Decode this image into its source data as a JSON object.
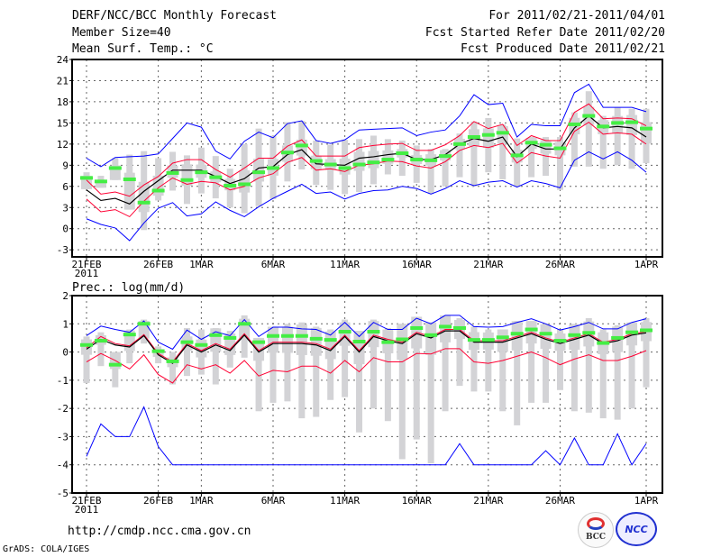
{
  "header": {
    "title": "DERF/NCC/BCC Monthly Forecast",
    "member_size": "Member Size=40",
    "variable": "Mean Surf. Temp.: °C",
    "period": "For 2011/02/21-2011/04/01",
    "started": "Fcst Started Refer Date 2011/02/20",
    "produced": "Fcst Produced Date 2011/02/21"
  },
  "footer": {
    "url": "http://cmdp.ncc.cma.gov.cn",
    "credit": "GrADS: COLA/IGES",
    "logo_bcc": "BCC",
    "logo_ncc": "NCC"
  },
  "colors": {
    "mean": "#000000",
    "spread": "#ff0033",
    "extreme": "#0000ff",
    "observed": "#44ee44",
    "range": "#d3d3d6"
  },
  "chart_data": [
    {
      "type": "line",
      "title": "Mean Surf. Temp.: °C",
      "ylim": [
        -4,
        24
      ],
      "yticks": [
        -3,
        0,
        3,
        6,
        9,
        12,
        15,
        18,
        21,
        24
      ],
      "xticks": [
        {
          "day": 0,
          "label": "21FEB",
          "sub": "2011"
        },
        {
          "day": 5,
          "label": "26FEB"
        },
        {
          "day": 8,
          "label": "1MAR"
        },
        {
          "day": 13,
          "label": "6MAR"
        },
        {
          "day": 18,
          "label": "11MAR"
        },
        {
          "day": 23,
          "label": "16MAR"
        },
        {
          "day": 28,
          "label": "21MAR"
        },
        {
          "day": 33,
          "label": "26MAR"
        },
        {
          "day": 39,
          "label": "1APR"
        }
      ],
      "grid": true,
      "series": {
        "mean": [
          5.5,
          4.0,
          4.3,
          3.5,
          5.3,
          6.8,
          8.3,
          8.3,
          8.3,
          7.4,
          6.4,
          7.1,
          8.6,
          8.8,
          10.5,
          11.2,
          9.2,
          9.1,
          9.0,
          10.0,
          10.2,
          10.5,
          10.7,
          9.8,
          9.8,
          10.5,
          12.0,
          12.8,
          12.4,
          13.0,
          10.2,
          12.0,
          11.3,
          11.3,
          14.3,
          16.0,
          14.3,
          14.5,
          14.3,
          13.0
        ],
        "upper": [
          6.9,
          4.9,
          5.2,
          4.6,
          6.2,
          7.4,
          9.3,
          9.8,
          9.8,
          8.4,
          7.3,
          8.6,
          10.0,
          10.0,
          11.7,
          12.6,
          10.3,
          10.3,
          10.3,
          11.5,
          11.8,
          12.0,
          12.1,
          11.1,
          11.1,
          11.9,
          13.2,
          15.2,
          14.2,
          14.8,
          11.8,
          13.2,
          12.5,
          12.5,
          16.5,
          17.7,
          15.6,
          15.7,
          15.6,
          14.6
        ],
        "lower": [
          4.2,
          2.4,
          2.7,
          1.7,
          3.9,
          5.8,
          7.2,
          6.3,
          6.7,
          6.5,
          5.5,
          6.0,
          7.2,
          7.8,
          9.4,
          10.1,
          8.3,
          8.5,
          8.1,
          9.0,
          9.2,
          9.6,
          9.5,
          8.9,
          8.6,
          9.5,
          11.1,
          11.8,
          11.5,
          12.1,
          9.3,
          10.8,
          10.3,
          10.0,
          13.8,
          15.1,
          13.4,
          13.6,
          13.4,
          12.0
        ],
        "max": [
          10.0,
          8.8,
          10.1,
          10.2,
          10.3,
          10.6,
          12.8,
          15.0,
          14.4,
          11.0,
          9.9,
          12.4,
          13.7,
          12.9,
          14.9,
          15.3,
          12.5,
          12.1,
          12.6,
          14.0,
          14.1,
          14.2,
          14.3,
          13.2,
          13.7,
          14.0,
          16.0,
          19.0,
          17.6,
          17.8,
          13.0,
          14.8,
          14.6,
          14.6,
          19.3,
          20.5,
          17.2,
          17.2,
          17.2,
          16.6
        ],
        "min": [
          1.4,
          0.6,
          0.1,
          -1.7,
          0.8,
          2.9,
          3.7,
          1.8,
          2.1,
          3.8,
          2.6,
          1.7,
          3.1,
          4.3,
          5.3,
          6.3,
          5.0,
          5.2,
          4.2,
          5.0,
          5.4,
          5.5,
          6.0,
          5.7,
          4.9,
          5.7,
          6.8,
          6.1,
          6.6,
          6.8,
          5.9,
          6.8,
          6.4,
          5.8,
          9.7,
          10.9,
          9.9,
          10.9,
          9.7,
          8.0
        ],
        "observed": [
          7.2,
          6.7,
          8.6,
          7.0,
          3.7,
          5.4,
          7.9,
          6.9,
          8.0,
          7.3,
          6.1,
          6.3,
          8.0,
          8.6,
          10.8,
          11.8,
          9.6,
          9.1,
          8.6,
          9.1,
          9.4,
          9.8,
          10.7,
          9.8,
          9.7,
          10.3,
          12.0,
          13.0,
          13.3,
          13.6,
          10.4,
          12.2,
          11.9,
          11.4,
          14.8,
          16.0,
          14.5,
          15.0,
          15.1,
          14.2
        ],
        "range_low": [
          5.6,
          5.8,
          6.9,
          2.7,
          -0.2,
          4.0,
          5.4,
          3.5,
          5.0,
          4.3,
          3.0,
          2.2,
          3.2,
          4.2,
          6.7,
          8.4,
          6.2,
          5.5,
          4.9,
          5.2,
          6.3,
          7.7,
          7.5,
          6.5,
          5.0,
          6.0,
          7.3,
          6.0,
          8.0,
          7.0,
          6.0,
          7.3,
          7.5,
          5.5,
          8.8,
          8.8,
          8.5,
          9.0,
          8.5,
          9.3
        ],
        "range_high": [
          8.0,
          7.5,
          10.0,
          10.5,
          11.0,
          10.0,
          10.9,
          10.4,
          11.5,
          10.3,
          8.5,
          12.0,
          14.2,
          13.2,
          15.1,
          15.3,
          12.5,
          11.9,
          12.6,
          12.7,
          13.2,
          12.7,
          12.5,
          11.8,
          11.3,
          11.3,
          13.5,
          15.2,
          15.7,
          14.8,
          12.8,
          13.0,
          13.0,
          13.0,
          16.5,
          19.5,
          16.0,
          17.2,
          17.0,
          17.0
        ]
      }
    },
    {
      "type": "line",
      "title": "Prec.: log(mm/d)",
      "ylim": [
        -5,
        2
      ],
      "yticks": [
        -5,
        -4,
        -3,
        -2,
        -1,
        0,
        1,
        2
      ],
      "xticks": [
        {
          "day": 0,
          "label": "21FEB",
          "sub": "2011"
        },
        {
          "day": 5,
          "label": "26FEB"
        },
        {
          "day": 8,
          "label": "1MAR"
        },
        {
          "day": 13,
          "label": "6MAR"
        },
        {
          "day": 18,
          "label": "11MAR"
        },
        {
          "day": 23,
          "label": "16MAR"
        },
        {
          "day": 28,
          "label": "21MAR"
        },
        {
          "day": 33,
          "label": "26MAR"
        },
        {
          "day": 39,
          "label": "1APR"
        }
      ],
      "grid": true,
      "series": {
        "mean": [
          0.1,
          0.45,
          0.25,
          0.18,
          0.58,
          -0.1,
          -0.4,
          0.25,
          0.0,
          0.25,
          0.05,
          0.6,
          0.0,
          0.3,
          0.3,
          0.3,
          0.25,
          0.05,
          0.55,
          0.0,
          0.55,
          0.4,
          0.3,
          0.65,
          0.5,
          0.75,
          0.75,
          0.35,
          0.35,
          0.35,
          0.5,
          0.65,
          0.45,
          0.3,
          0.45,
          0.6,
          0.3,
          0.4,
          0.6,
          0.68
        ],
        "upper": [
          0.15,
          0.55,
          0.3,
          0.22,
          0.62,
          -0.05,
          -0.35,
          0.3,
          0.05,
          0.3,
          0.1,
          0.65,
          0.05,
          0.35,
          0.35,
          0.35,
          0.3,
          0.1,
          0.6,
          0.05,
          0.6,
          0.45,
          0.35,
          0.7,
          0.55,
          0.8,
          0.8,
          0.4,
          0.4,
          0.4,
          0.55,
          0.7,
          0.5,
          0.35,
          0.5,
          0.65,
          0.35,
          0.45,
          0.65,
          0.72
        ],
        "lower": [
          -0.35,
          -0.05,
          -0.3,
          -0.6,
          -0.1,
          -0.8,
          -1.1,
          -0.45,
          -0.6,
          -0.45,
          -0.75,
          -0.3,
          -0.85,
          -0.65,
          -0.7,
          -0.5,
          -0.5,
          -0.75,
          -0.3,
          -0.7,
          -0.2,
          -0.35,
          -0.35,
          -0.05,
          -0.07,
          0.12,
          0.12,
          -0.35,
          -0.4,
          -0.3,
          -0.15,
          0.0,
          -0.2,
          -0.45,
          -0.25,
          -0.1,
          -0.3,
          -0.3,
          -0.15,
          0.05
        ],
        "max": [
          0.58,
          0.92,
          0.8,
          0.7,
          1.1,
          0.35,
          0.1,
          0.78,
          0.45,
          0.72,
          0.58,
          1.15,
          0.55,
          0.88,
          0.88,
          0.82,
          0.8,
          0.6,
          1.05,
          0.55,
          1.05,
          0.8,
          0.8,
          1.2,
          1.0,
          1.3,
          1.3,
          0.9,
          0.88,
          0.9,
          1.05,
          1.18,
          1.0,
          0.78,
          0.9,
          1.05,
          0.82,
          0.82,
          1.05,
          1.18
        ],
        "min": [
          -3.7,
          -2.55,
          -3.0,
          -3.0,
          -1.95,
          -3.35,
          -4,
          -4,
          -4,
          -4,
          -4,
          -4,
          -4,
          -4,
          -4,
          -4,
          -4,
          -4,
          -4,
          -4,
          -4,
          -4,
          -4,
          -4,
          -4,
          -4,
          -3.25,
          -4,
          -4,
          -4,
          -4,
          -4,
          -3.5,
          -4,
          -3.05,
          -4,
          -4,
          -2.9,
          -4,
          -3.25
        ],
        "observed": [
          0.25,
          0.4,
          -0.45,
          0.62,
          1.0,
          0.03,
          -0.33,
          0.35,
          0.25,
          0.6,
          0.5,
          1.0,
          0.35,
          0.57,
          0.57,
          0.57,
          0.47,
          0.43,
          0.72,
          0.37,
          0.72,
          0.35,
          0.45,
          0.85,
          0.6,
          0.9,
          0.85,
          0.43,
          0.43,
          0.52,
          0.65,
          0.8,
          0.65,
          0.4,
          0.6,
          0.68,
          0.32,
          0.5,
          0.7,
          0.77
        ],
        "range_low": [
          -1.1,
          -0.5,
          -1.25,
          -0.4,
          0.3,
          -0.4,
          -1.15,
          -0.85,
          -0.8,
          -1.15,
          -0.55,
          -0.2,
          -2.1,
          -1.8,
          -1.75,
          -2.35,
          -2.3,
          -1.7,
          -1.6,
          -2.85,
          -2.0,
          -2.45,
          -3.8,
          -3.1,
          -3.95,
          -2.1,
          -1.2,
          -1.4,
          -1.4,
          -2.1,
          -2.6,
          -1.8,
          -1.8,
          -1.35,
          -2.1,
          -2.15,
          -2.35,
          -2.4,
          -2.0,
          -1.25
        ],
        "range_high": [
          0.55,
          0.7,
          0.0,
          0.8,
          1.15,
          0.2,
          0.0,
          0.85,
          0.8,
          0.85,
          0.75,
          1.3,
          0.5,
          0.9,
          1.0,
          1.05,
          0.9,
          0.8,
          1.15,
          0.75,
          1.15,
          0.85,
          1.0,
          1.25,
          1.05,
          1.3,
          1.2,
          0.9,
          0.8,
          0.8,
          1.1,
          1.1,
          1.0,
          0.8,
          1.0,
          1.2,
          0.8,
          0.95,
          1.05,
          1.2
        ]
      }
    }
  ]
}
